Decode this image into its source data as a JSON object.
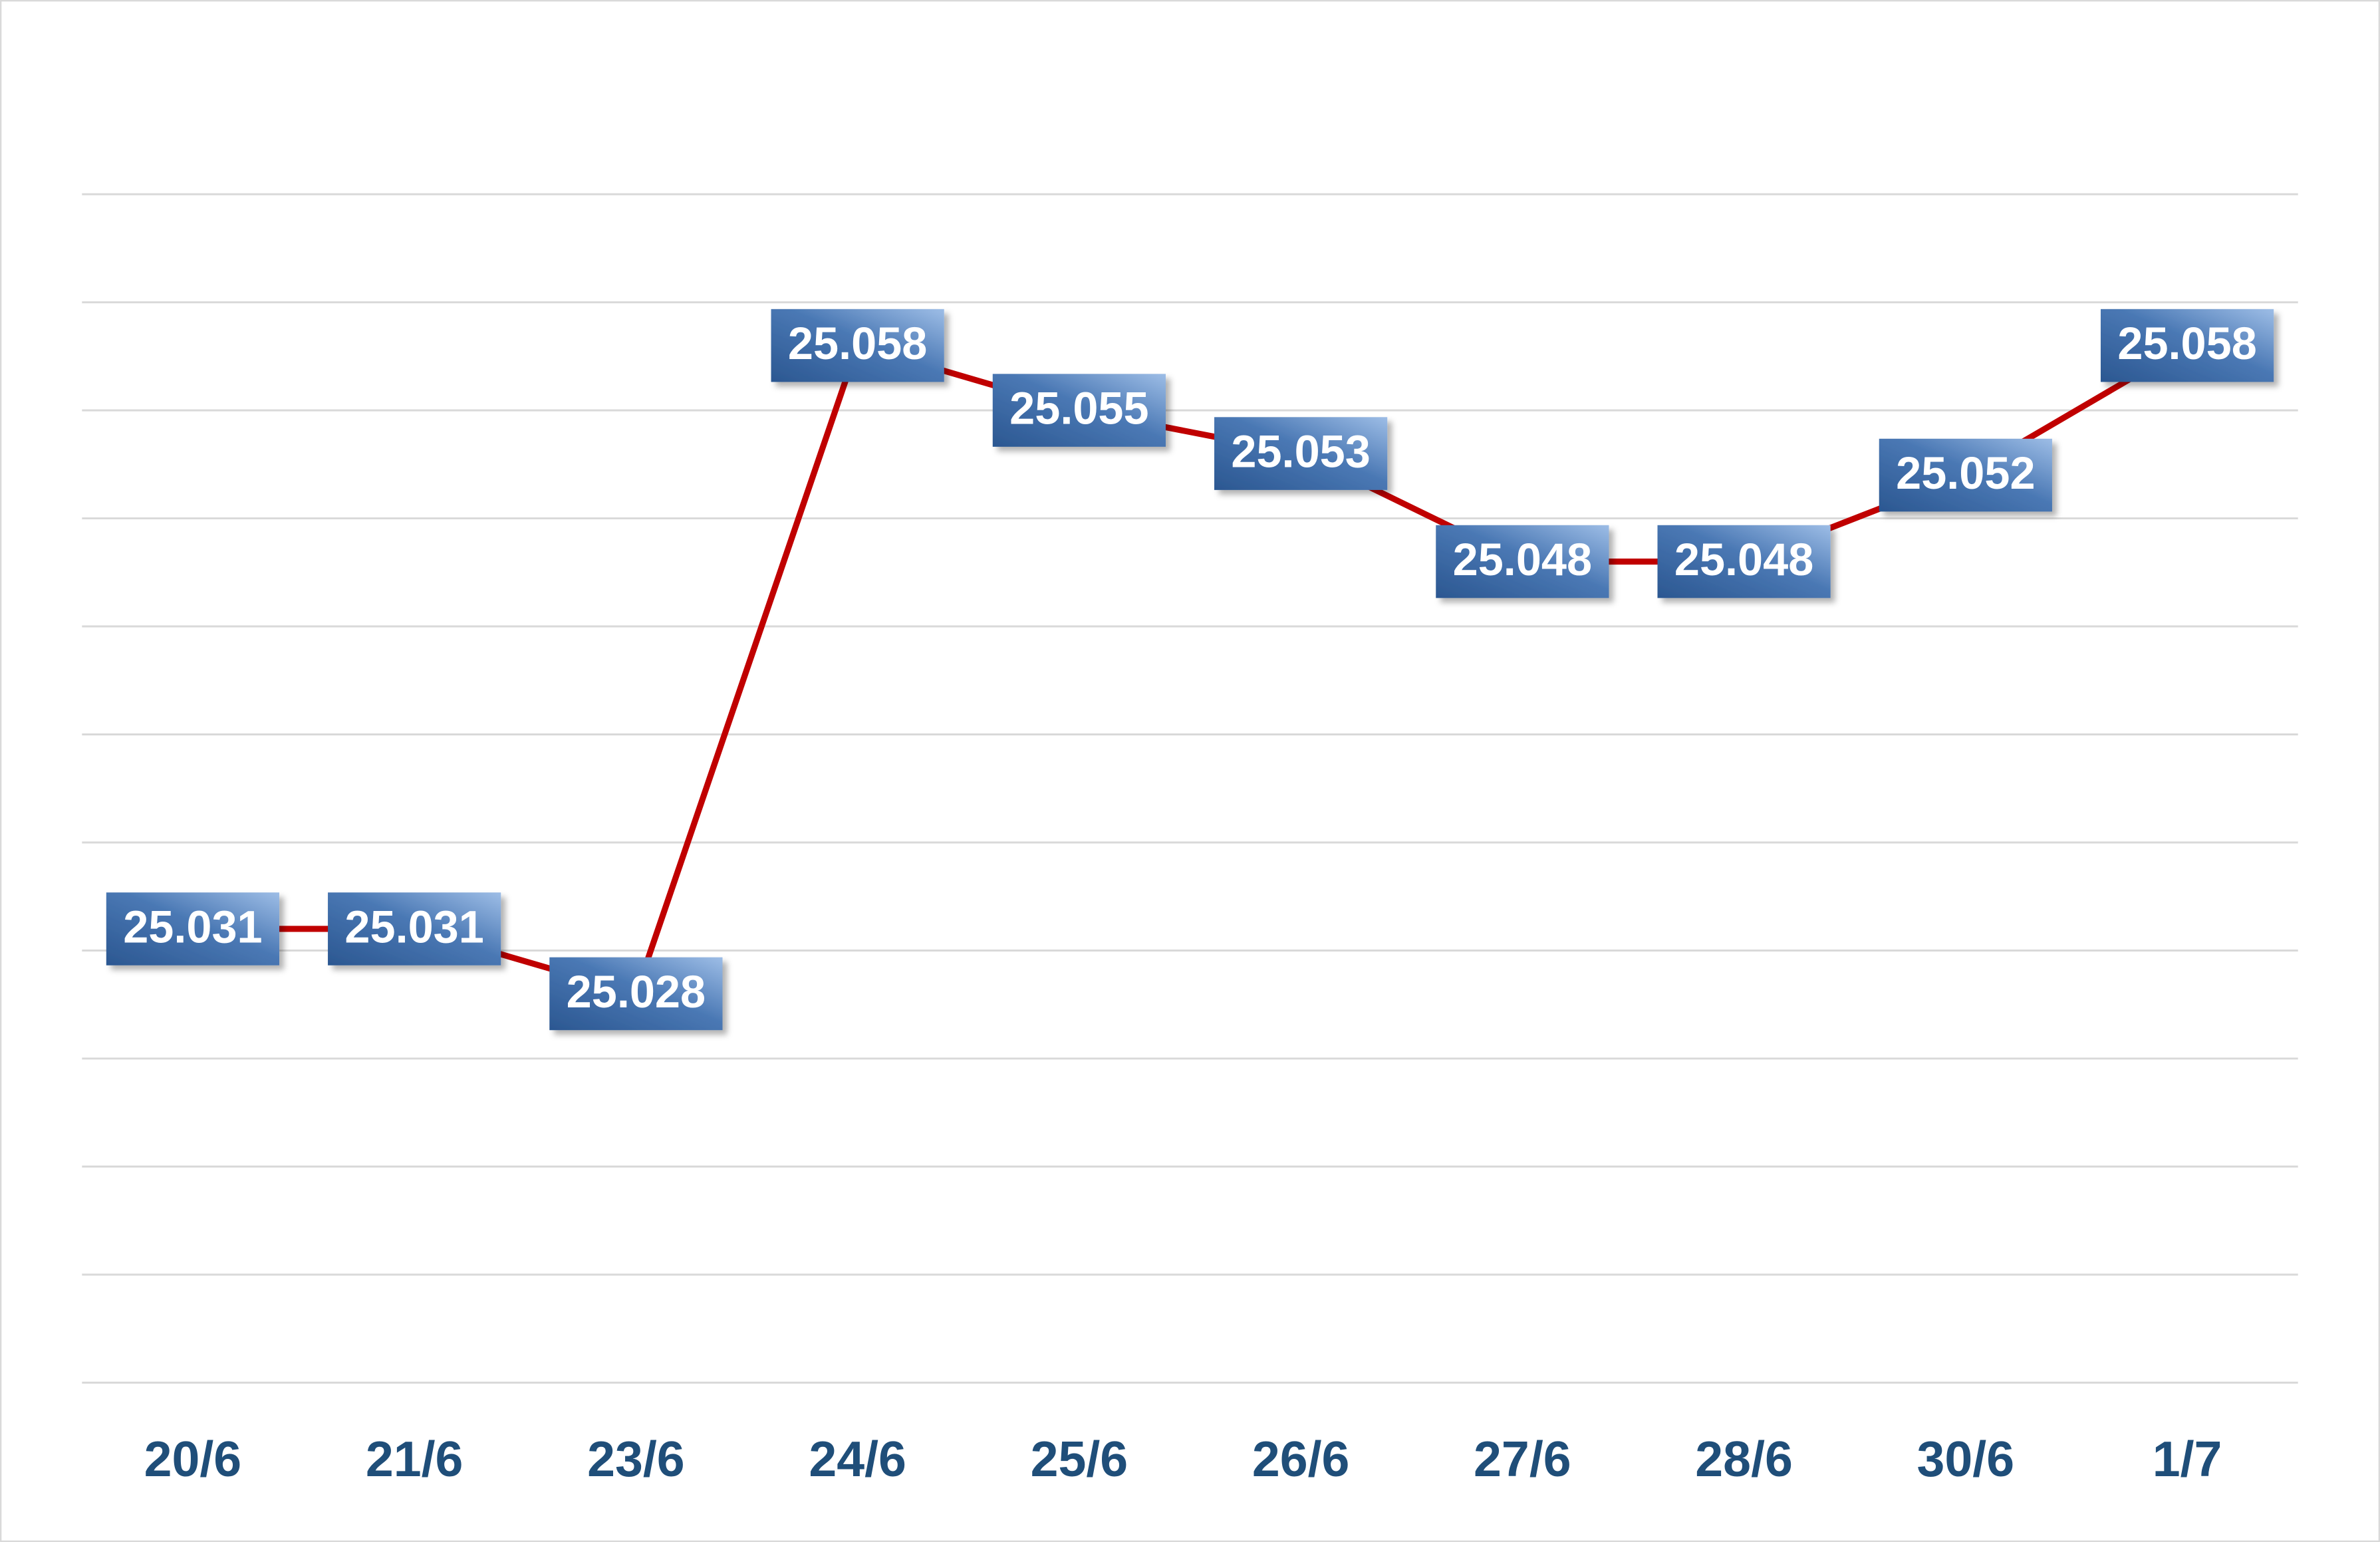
{
  "chart_data": {
    "type": "line",
    "categories": [
      "20/6",
      "21/6",
      "23/6",
      "24/6",
      "25/6",
      "26/6",
      "27/6",
      "28/6",
      "30/6",
      "1/7"
    ],
    "values": [
      25.031,
      25.031,
      25.028,
      25.058,
      25.055,
      25.053,
      25.048,
      25.048,
      25.052,
      25.058
    ],
    "color": "#c00000",
    "ylim": [
      25.01,
      25.065
    ],
    "yticks": [
      25.01,
      25.015,
      25.02,
      25.025,
      25.03,
      25.035,
      25.04,
      25.045,
      25.05,
      25.055,
      25.06,
      25.065
    ],
    "grid": true
  }
}
